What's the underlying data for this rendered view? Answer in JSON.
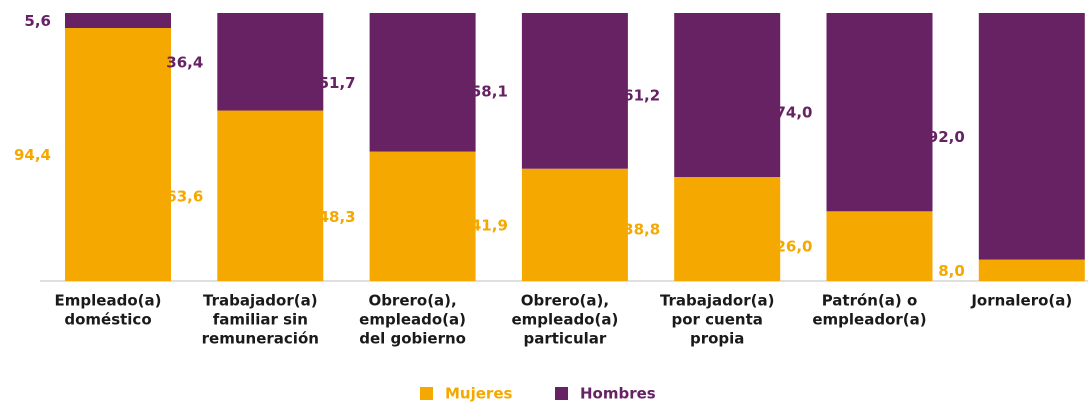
{
  "chart_data": {
    "type": "stacked_bar",
    "categories": [
      [
        "Empleado(a)",
        "doméstico"
      ],
      [
        "Trabajador(a)",
        "familiar sin",
        "remuneración"
      ],
      [
        "Obrero(a),",
        "empleado(a)",
        "del gobierno"
      ],
      [
        "Obrero(a),",
        "empleado(a)",
        "particular"
      ],
      [
        "Trabajador(a)",
        "por cuenta",
        "propia"
      ],
      [
        "Patrón(a) o",
        "empleador(a)"
      ],
      [
        "Jornalero(a)"
      ]
    ],
    "series": [
      {
        "name": "Mujeres",
        "color": "#f5a800",
        "values": [
          94.4,
          63.6,
          48.3,
          41.9,
          38.8,
          26.0,
          8.0
        ],
        "value_labels": [
          "94,4",
          "63,6",
          "48,3",
          "41,9",
          "38,8",
          "26,0",
          "8,0"
        ]
      },
      {
        "name": "Hombres",
        "color": "#662263",
        "values": [
          5.6,
          36.4,
          51.7,
          58.1,
          61.2,
          74.0,
          92.0
        ],
        "value_labels": [
          "5,6",
          "36,4",
          "51,7",
          "58,1",
          "61,2",
          "74,0",
          "92,0"
        ]
      }
    ],
    "ylim": [
      0,
      100
    ],
    "legend": "bottom"
  }
}
